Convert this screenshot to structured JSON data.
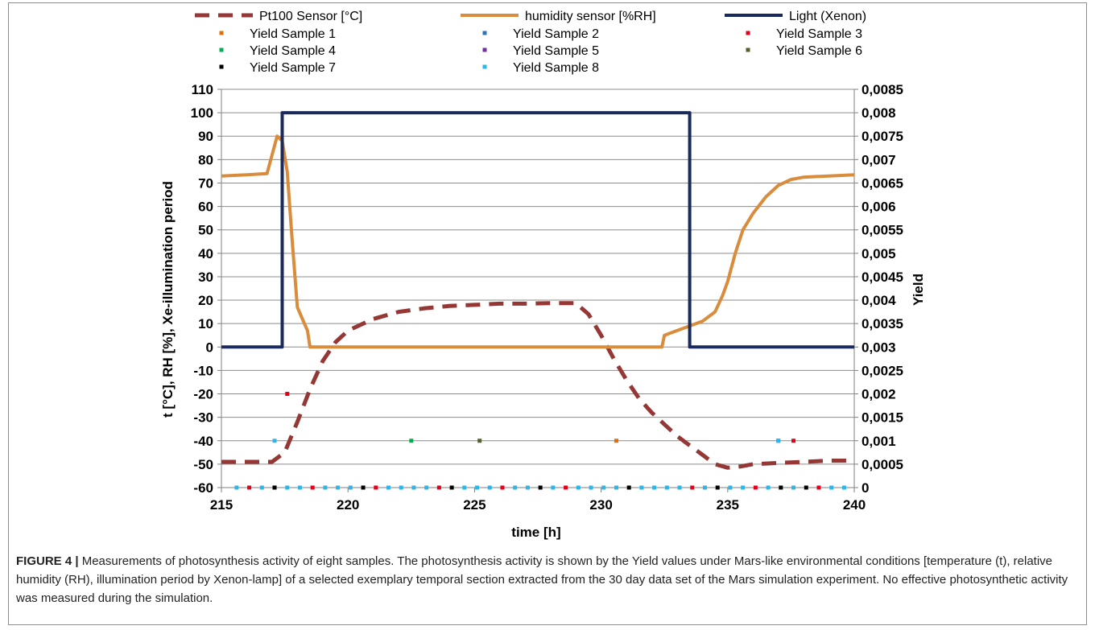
{
  "chart_data": {
    "type": "line",
    "xlabel": "time [h]",
    "ylabel": "t [°C], RH [%], Xe-illumination period",
    "y2label": "Yield",
    "xlim": [
      215,
      240
    ],
    "ylim": [
      -60,
      110
    ],
    "y2lim": [
      0,
      0.0085
    ],
    "xticks": [
      "215",
      "220",
      "225",
      "230",
      "235",
      "240"
    ],
    "yticks": [
      "110",
      "100",
      "90",
      "80",
      "70",
      "60",
      "50",
      "40",
      "30",
      "20",
      "10",
      "0",
      "-10",
      "-20",
      "-30",
      "-40",
      "-50",
      "-60"
    ],
    "y2ticks": [
      "0,0085",
      "0,008",
      "0,0075",
      "0,007",
      "0,0065",
      "0,006",
      "0,0055",
      "0,005",
      "0,0045",
      "0,004",
      "0,0035",
      "0,003",
      "0,0025",
      "0,002",
      "0,0015",
      "0,001",
      "0,0005",
      "0"
    ],
    "grid": true,
    "legend_position": "top",
    "series": [
      {
        "name": "Pt100 Sensor [°C]",
        "color": "#953735",
        "style": "dashed",
        "axis": "left",
        "points": [
          [
            215,
            -49
          ],
          [
            216,
            -49
          ],
          [
            217,
            -49
          ],
          [
            217.5,
            -45
          ],
          [
            218,
            -32
          ],
          [
            218.5,
            -18
          ],
          [
            219,
            -6
          ],
          [
            219.5,
            2
          ],
          [
            220,
            7
          ],
          [
            221,
            12
          ],
          [
            222,
            15
          ],
          [
            223,
            16.5
          ],
          [
            224,
            17.5
          ],
          [
            225,
            18
          ],
          [
            226,
            18.5
          ],
          [
            227,
            18.5
          ],
          [
            228,
            18.7
          ],
          [
            229,
            18.7
          ],
          [
            229.5,
            14
          ],
          [
            230,
            5
          ],
          [
            230.5,
            -5
          ],
          [
            231,
            -14
          ],
          [
            231.5,
            -22
          ],
          [
            232,
            -28
          ],
          [
            232.5,
            -33
          ],
          [
            233,
            -38
          ],
          [
            233.5,
            -42
          ],
          [
            234,
            -46
          ],
          [
            234.5,
            -50
          ],
          [
            235,
            -51.5
          ],
          [
            235.5,
            -51
          ],
          [
            236,
            -50
          ],
          [
            237,
            -49.5
          ],
          [
            238,
            -49
          ],
          [
            239,
            -48.5
          ],
          [
            240,
            -48.5
          ]
        ]
      },
      {
        "name": "humidity sensor [%RH]",
        "color": "#d98c3c",
        "style": "solid",
        "axis": "left",
        "points": [
          [
            215,
            73
          ],
          [
            216,
            73.5
          ],
          [
            216.8,
            74
          ],
          [
            217,
            82
          ],
          [
            217.2,
            90
          ],
          [
            217.4,
            88
          ],
          [
            217.6,
            75
          ],
          [
            217.8,
            45
          ],
          [
            218,
            17
          ],
          [
            218.2,
            12
          ],
          [
            218.4,
            7
          ],
          [
            218.5,
            0
          ],
          [
            232.4,
            0
          ],
          [
            232.5,
            5
          ],
          [
            233,
            7
          ],
          [
            233.5,
            9
          ],
          [
            234,
            11
          ],
          [
            234.5,
            15
          ],
          [
            234.8,
            22
          ],
          [
            235,
            28
          ],
          [
            235.3,
            40
          ],
          [
            235.6,
            50
          ],
          [
            236,
            57
          ],
          [
            236.5,
            64
          ],
          [
            237,
            69
          ],
          [
            237.5,
            71.5
          ],
          [
            238,
            72.5
          ],
          [
            239,
            73
          ],
          [
            240,
            73.5
          ]
        ]
      },
      {
        "name": "Light (Xenon)",
        "color": "#1a2a5c",
        "style": "solid",
        "axis": "left",
        "points": [
          [
            215,
            0
          ],
          [
            217.4,
            0
          ],
          [
            217.4,
            100
          ],
          [
            233.5,
            100
          ],
          [
            233.5,
            0
          ],
          [
            240,
            0
          ]
        ]
      }
    ],
    "yield_series": [
      {
        "name": "Yield Sample 1",
        "color": "#e46c0a",
        "points": [
          [
            230.6,
            0.001
          ]
        ]
      },
      {
        "name": "Yield Sample 2",
        "color": "#2e75b6",
        "points": [
          [
            237,
            0.001
          ]
        ]
      },
      {
        "name": "Yield Sample 3",
        "color": "#e4001b",
        "points": [
          [
            217.6,
            0.002
          ],
          [
            237.6,
            0.001
          ]
        ]
      },
      {
        "name": "Yield Sample 4",
        "color": "#00b050",
        "points": [
          [
            222.5,
            0.001
          ]
        ]
      },
      {
        "name": "Yield Sample 5",
        "color": "#7030a0",
        "points": []
      },
      {
        "name": "Yield Sample 6",
        "color": "#4f6228",
        "points": [
          [
            225.2,
            0.001
          ]
        ]
      },
      {
        "name": "Yield Sample 7",
        "color": "#000000",
        "points": [
          [
            217.1,
            0
          ],
          [
            237.1,
            0
          ]
        ]
      },
      {
        "name": "Yield Sample 8",
        "color": "#2eb6e8",
        "points": [
          [
            217.1,
            0.001
          ],
          [
            237,
            0.001
          ]
        ]
      }
    ],
    "zero_yield_x": [
      215.6,
      216.1,
      216.6,
      217.1,
      217.6,
      218.1,
      218.6,
      219.1,
      219.6,
      220.1,
      220.6,
      221.1,
      221.6,
      222.1,
      222.6,
      223.1,
      223.6,
      224.1,
      224.6,
      225.1,
      225.6,
      226.1,
      226.6,
      227.1,
      227.6,
      228.1,
      228.6,
      229.1,
      229.6,
      230.1,
      230.6,
      231.1,
      231.6,
      232.1,
      232.6,
      233.1,
      233.6,
      234.1,
      234.6,
      235.1,
      235.6,
      236.1,
      236.6,
      237.1,
      237.6,
      238.1,
      238.6,
      239.1,
      239.6
    ]
  },
  "caption": {
    "label": "FIGURE 4 |",
    "text": " Measurements of photosynthesis activity of eight samples. The photosynthesis activity is shown by the Yield values under Mars-like environmental conditions [temperature (t), relative humidity (RH), illumination period by Xenon-lamp] of a selected exemplary temporal section extracted from the 30 day data set of the Mars simulation experiment. No effective photosynthetic activity was measured during the simulation."
  }
}
